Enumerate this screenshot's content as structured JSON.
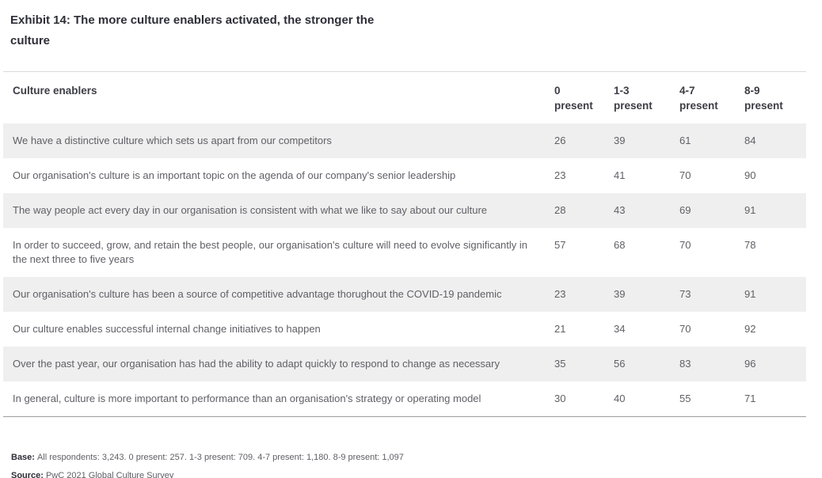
{
  "title": {
    "line1": "Exhibit 14: The more culture enablers activated, the stronger the",
    "line2": "culture"
  },
  "table": {
    "header": {
      "label": "Culture enablers",
      "columns": [
        {
          "range": "0",
          "unit": "present"
        },
        {
          "range": "1-3",
          "unit": "present"
        },
        {
          "range": "4-7",
          "unit": "present"
        },
        {
          "range": "8-9",
          "unit": "present"
        }
      ]
    },
    "rows": [
      {
        "label": "We have a distinctive culture which sets us apart from our competitors",
        "values": [
          26,
          39,
          61,
          84
        ]
      },
      {
        "label": "Our organisation's culture is an important topic on the agenda of our company's senior leadership",
        "values": [
          23,
          41,
          70,
          90
        ]
      },
      {
        "label": "The way people act every day in our organisation is consistent with what we like to say about our culture",
        "values": [
          28,
          43,
          69,
          91
        ]
      },
      {
        "label": "In order to succeed, grow, and retain the best people, our organisation's culture will need to evolve significantly in the next three to five years",
        "values": [
          57,
          68,
          70,
          78
        ]
      },
      {
        "label": "Our organisation's culture has been a source of competitive advantage thorughout the COVID-19 pandemic",
        "values": [
          23,
          39,
          73,
          91
        ]
      },
      {
        "label": "Our culture enables successful internal change initiatives to happen",
        "values": [
          21,
          34,
          70,
          92
        ]
      },
      {
        "label": "Over the past year, our organisation has had the ability to adapt quickly to respond to change as necessary",
        "values": [
          35,
          56,
          83,
          96
        ]
      },
      {
        "label": "In general, culture is more important to performance than an organisation's strategy or operating model",
        "values": [
          30,
          40,
          55,
          71
        ]
      }
    ]
  },
  "footer": {
    "base_label": "Base:",
    "base_text": "All respondents: 3,243. 0 present: 257. 1-3 present: 709. 4-7 present: 1,180. 8-9 present: 1,097",
    "source_label": "Source:",
    "source_text": "PwC 2021 Global Culture Survey"
  },
  "colors": {
    "title_text": "#2e2e38",
    "header_text": "#3d3d46",
    "body_text": "#5f5f66",
    "row_stripe": "#efefef",
    "table_top_border": "#d9d9d9",
    "table_bottom_border": "#9e9e9e"
  }
}
